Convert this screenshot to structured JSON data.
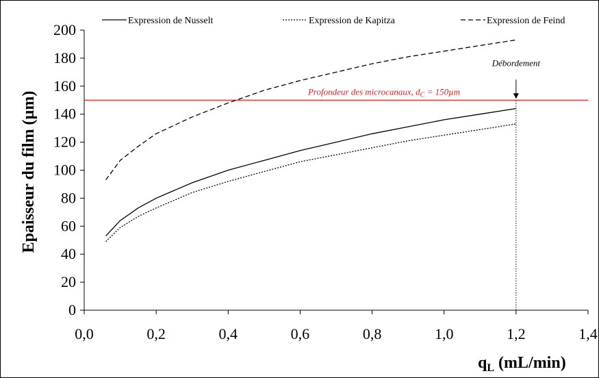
{
  "chart_data": {
    "type": "line",
    "title": "",
    "xlabel_main": "q",
    "xlabel_sub": "L",
    "xlabel_unit": " (mL/min)",
    "ylabel": "Epaisseur du film (µm)",
    "xlim": [
      0.0,
      1.4
    ],
    "ylim": [
      0,
      200
    ],
    "x_ticks": [
      0.0,
      0.2,
      0.4,
      0.6,
      0.8,
      1.0,
      1.2,
      1.4
    ],
    "x_tick_labels": [
      "0,0",
      "0,2",
      "0,4",
      "0,6",
      "0,8",
      "1,0",
      "1,2",
      "1,4"
    ],
    "y_ticks": [
      0,
      20,
      40,
      60,
      80,
      100,
      120,
      140,
      160,
      180,
      200
    ],
    "y_tick_labels": [
      "0",
      "20",
      "40",
      "60",
      "80",
      "100",
      "120",
      "140",
      "160",
      "180",
      "200"
    ],
    "grid": false,
    "legend_position": "top",
    "series": [
      {
        "name": "Expression de Nusselt",
        "style": "solid",
        "color": "#000000",
        "x": [
          0.06,
          0.1,
          0.15,
          0.2,
          0.3,
          0.4,
          0.5,
          0.6,
          0.7,
          0.8,
          0.9,
          1.0,
          1.1,
          1.2
        ],
        "y": [
          53,
          64,
          73,
          80,
          91,
          100,
          107,
          114,
          120,
          126,
          131,
          136,
          140,
          144
        ]
      },
      {
        "name": "Expression de Kapitza",
        "style": "dotted",
        "color": "#000000",
        "x": [
          0.06,
          0.1,
          0.15,
          0.2,
          0.3,
          0.4,
          0.5,
          0.6,
          0.7,
          0.8,
          0.9,
          1.0,
          1.1,
          1.2
        ],
        "y": [
          49,
          59,
          67,
          73,
          84,
          92,
          99,
          106,
          111,
          116,
          121,
          125,
          129,
          133
        ]
      },
      {
        "name": "Expression de Feind",
        "style": "dashed",
        "color": "#000000",
        "x": [
          0.06,
          0.1,
          0.15,
          0.2,
          0.3,
          0.4,
          0.5,
          0.6,
          0.7,
          0.8,
          0.9,
          1.0,
          1.1,
          1.2
        ],
        "y": [
          93,
          107,
          117,
          126,
          138,
          148,
          157,
          164,
          170,
          176,
          181,
          185,
          189,
          193
        ]
      }
    ],
    "reference_line": {
      "y": 150,
      "color": "#e02020",
      "label_main": "Profondeur des microcanaux, d",
      "label_sub": "C",
      "label_tail": " = 150µm"
    },
    "vertical_line": {
      "x": 1.2,
      "style": "dotted",
      "color": "#000000"
    },
    "annotation": {
      "text": "Débordement",
      "x": 1.2,
      "y_value": 150
    }
  }
}
